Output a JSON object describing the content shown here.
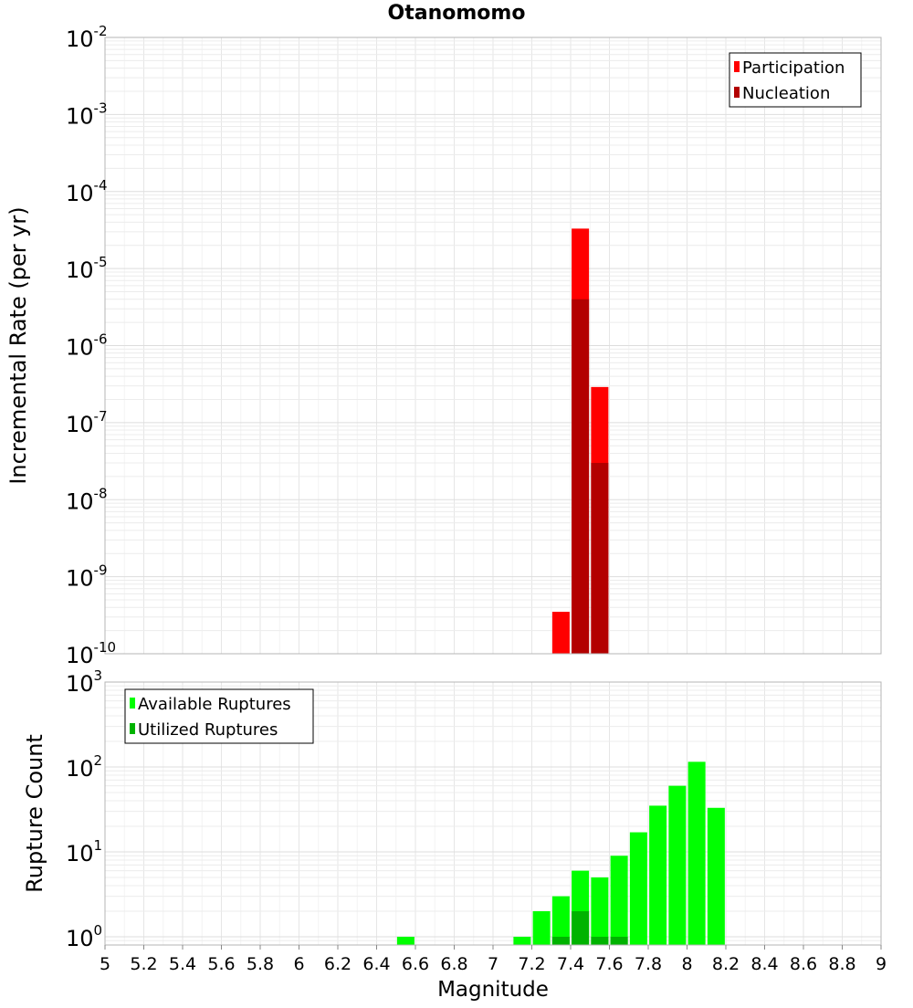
{
  "chart_data": [
    {
      "type": "bar",
      "title": "Otanomomo",
      "xlabel": "",
      "ylabel": "Incremental Rate (per yr)",
      "yscale": "log",
      "ylim": [
        1e-10,
        0.01
      ],
      "xlim": [
        5,
        9
      ],
      "grid": true,
      "legend_position": "top-right",
      "ytick_exponents": [
        "-10",
        "-9",
        "-8",
        "-7",
        "-6",
        "-5",
        "-4",
        "-3",
        "-2"
      ],
      "series": [
        {
          "name": "Participation",
          "color": "#ff0000",
          "x": [
            7.35,
            7.45,
            7.55
          ],
          "values": [
            3.5e-10,
            3.3e-05,
            2.9e-07
          ]
        },
        {
          "name": "Nucleation",
          "color": "#b30000",
          "x": [
            7.45,
            7.55
          ],
          "values": [
            4e-06,
            3e-08
          ]
        }
      ]
    },
    {
      "type": "bar",
      "title": "",
      "xlabel": "Magnitude",
      "ylabel": "Rupture Count",
      "yscale": "log",
      "ylim": [
        0.8,
        1000
      ],
      "xlim": [
        5,
        9
      ],
      "grid": true,
      "legend_position": "top-left",
      "ytick_exponents": [
        "0",
        "1",
        "2",
        "3"
      ],
      "xticks": [
        "5",
        "5.2",
        "5.4",
        "5.6",
        "5.8",
        "6",
        "6.2",
        "6.4",
        "6.6",
        "6.8",
        "7",
        "7.2",
        "7.4",
        "7.6",
        "7.8",
        "8",
        "8.2",
        "8.4",
        "8.6",
        "8.8",
        "9"
      ],
      "series": [
        {
          "name": "Available Ruptures",
          "color": "#00ff00",
          "x": [
            6.55,
            7.15,
            7.25,
            7.35,
            7.45,
            7.55,
            7.65,
            7.75,
            7.85,
            7.95,
            8.05,
            8.15
          ],
          "values": [
            1,
            1,
            2,
            3,
            6,
            5,
            9,
            17,
            35,
            60,
            115,
            33
          ]
        },
        {
          "name": "Utilized Ruptures",
          "color": "#00b300",
          "x": [
            7.35,
            7.45,
            7.55,
            7.65
          ],
          "values": [
            1,
            2,
            1,
            1
          ]
        }
      ]
    }
  ]
}
